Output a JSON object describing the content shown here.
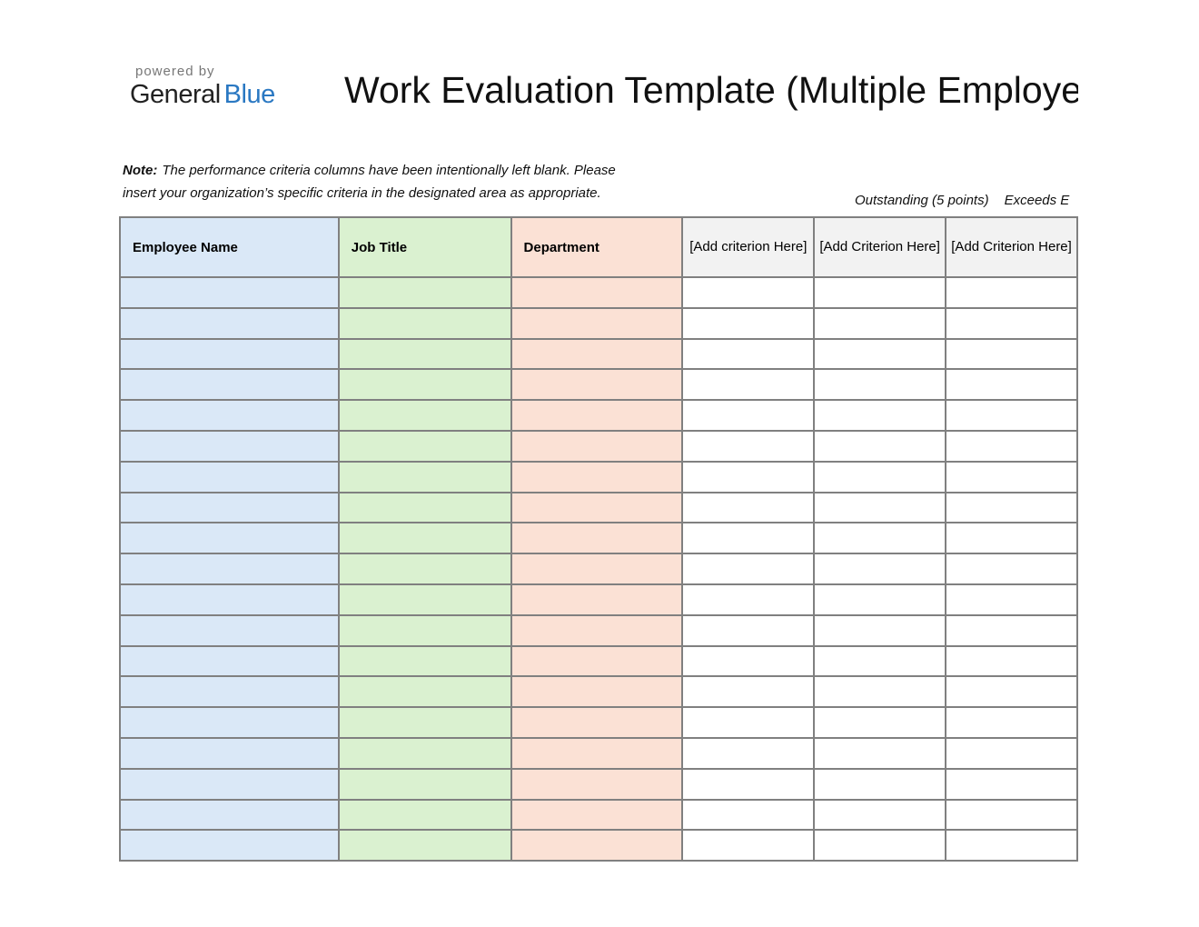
{
  "logo": {
    "powered_by": "powered by",
    "brand_first": "General",
    "brand_second": "Blue"
  },
  "header": {
    "title": "Work Evaluation Template (Multiple Employe"
  },
  "note": {
    "label": "Note:",
    "lines": [
      "The performance criteria columns have been intentionally left blank. Please",
      "insert your organization’s specific criteria in the designated area as appropriate."
    ]
  },
  "rating_scale": [
    "Outstanding (5 points)",
    "Exceeds E"
  ],
  "table": {
    "columns": [
      "Employee Name",
      "Job Title",
      "Department",
      "[Add criterion Here]",
      "[Add Criterion Here]",
      "[Add Criterion Here]"
    ]
  }
}
